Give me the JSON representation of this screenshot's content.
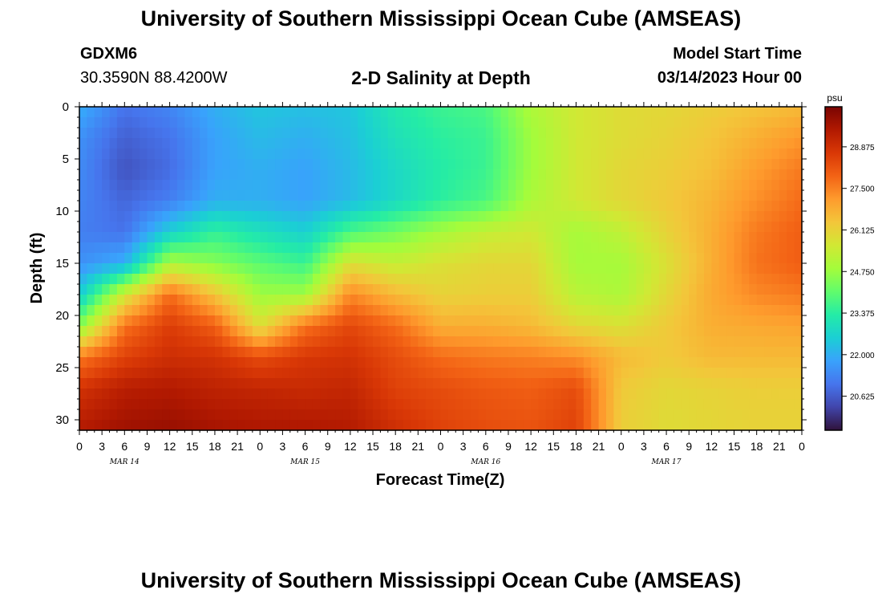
{
  "header": {
    "title": "University of Southern Mississippi Ocean Cube (AMSEAS)",
    "station": "GDXM6",
    "coords": "30.3590N  88.4200W",
    "subtitle": "2-D Salinity at Depth",
    "start_label": "Model Start Time",
    "start_time": "03/14/2023 Hour 00"
  },
  "footer": {
    "title": "University of Southern Mississippi Ocean Cube (AMSEAS)"
  },
  "chart_data": {
    "type": "heatmap",
    "xlabel": "Forecast Time(Z)",
    "ylabel": "Depth (ft)",
    "xlim": [
      0,
      96
    ],
    "ylim": [
      31,
      0
    ],
    "x_tick_labels": [
      "0",
      "3",
      "6",
      "9",
      "12",
      "15",
      "18",
      "21",
      "0",
      "3",
      "6",
      "9",
      "12",
      "15",
      "18",
      "21",
      "0",
      "3",
      "6",
      "9",
      "12",
      "15",
      "18",
      "21",
      "0",
      "3",
      "6",
      "9",
      "12",
      "15",
      "18",
      "21",
      "0"
    ],
    "y_ticks": [
      0,
      5,
      10,
      15,
      20,
      25,
      30
    ],
    "day_labels": [
      "MAR 14",
      "MAR 15",
      "MAR 16",
      "MAR 17"
    ],
    "colorbar": {
      "unit": "psu",
      "range": [
        19.5,
        30.2
      ],
      "tick_values": [
        20.625,
        22.0,
        23.375,
        24.75,
        26.125,
        27.5,
        28.875
      ],
      "tick_labels": [
        "20.625",
        "22.000",
        "23.375",
        "24.750",
        "26.125",
        "27.500",
        "28.875"
      ],
      "colormap": [
        "#30123b",
        "#4145ab",
        "#4675ed",
        "#39a2fc",
        "#1bcfd4",
        "#24eca6",
        "#61fc6c",
        "#a4fc3b",
        "#d1e834",
        "#f3c63a",
        "#fe9b2d",
        "#f36315",
        "#d93806",
        "#b11901",
        "#7a0402"
      ]
    },
    "depth_levels": [
      0,
      3,
      6,
      9,
      12,
      15,
      18,
      21,
      24,
      27,
      31
    ],
    "time_hours": [
      0,
      6,
      12,
      18,
      24,
      30,
      36,
      42,
      48,
      54,
      60,
      66,
      72,
      78,
      84,
      90,
      96
    ],
    "salinity": [
      [
        22.0,
        21.0,
        21.3,
        22.0,
        22.4,
        22.3,
        22.4,
        23.2,
        23.6,
        23.8,
        25.0,
        25.6,
        25.9,
        26.0,
        26.2,
        26.4,
        26.6
      ],
      [
        21.5,
        20.7,
        21.0,
        21.8,
        22.2,
        22.0,
        22.3,
        23.0,
        23.4,
        23.6,
        24.8,
        25.6,
        25.9,
        26.1,
        26.4,
        26.8,
        27.2
      ],
      [
        21.4,
        20.5,
        20.9,
        21.8,
        22.0,
        21.8,
        22.2,
        22.8,
        23.3,
        23.6,
        24.8,
        25.6,
        26.0,
        26.2,
        26.5,
        27.1,
        27.6
      ],
      [
        21.3,
        20.8,
        21.2,
        22.0,
        22.0,
        21.8,
        22.2,
        22.8,
        23.4,
        23.8,
        25.0,
        25.6,
        26.0,
        26.3,
        26.7,
        27.3,
        27.8
      ],
      [
        21.2,
        21.0,
        22.6,
        23.5,
        23.0,
        22.6,
        23.8,
        24.3,
        24.9,
        25.4,
        25.6,
        24.9,
        25.3,
        26.1,
        26.8,
        27.6,
        28.0
      ],
      [
        21.5,
        22.0,
        25.0,
        24.5,
        24.0,
        23.6,
        25.8,
        25.4,
        25.8,
        26.0,
        26.0,
        24.9,
        24.9,
        25.8,
        26.8,
        27.7,
        28.0
      ],
      [
        22.5,
        25.6,
        27.8,
        26.4,
        24.8,
        24.8,
        27.4,
        26.6,
        26.1,
        26.2,
        26.2,
        25.2,
        25.0,
        26.0,
        26.9,
        27.4,
        27.6
      ],
      [
        24.5,
        27.7,
        28.6,
        28.0,
        25.8,
        27.7,
        28.4,
        27.8,
        26.8,
        26.8,
        26.6,
        26.0,
        25.8,
        26.3,
        26.8,
        26.9,
        27.0
      ],
      [
        27.6,
        28.5,
        28.9,
        28.8,
        28.3,
        28.7,
        28.8,
        28.3,
        27.8,
        27.6,
        27.5,
        27.3,
        26.6,
        26.3,
        26.6,
        26.6,
        26.6
      ],
      [
        28.8,
        29.3,
        29.4,
        29.2,
        29.1,
        29.0,
        29.1,
        28.5,
        28.3,
        28.1,
        28.0,
        28.3,
        26.3,
        26.0,
        26.1,
        26.2,
        26.2
      ],
      [
        29.4,
        29.7,
        29.8,
        29.6,
        29.5,
        29.5,
        29.4,
        28.9,
        28.5,
        28.3,
        28.2,
        28.5,
        26.2,
        25.9,
        26.0,
        26.1,
        26.1
      ]
    ]
  }
}
